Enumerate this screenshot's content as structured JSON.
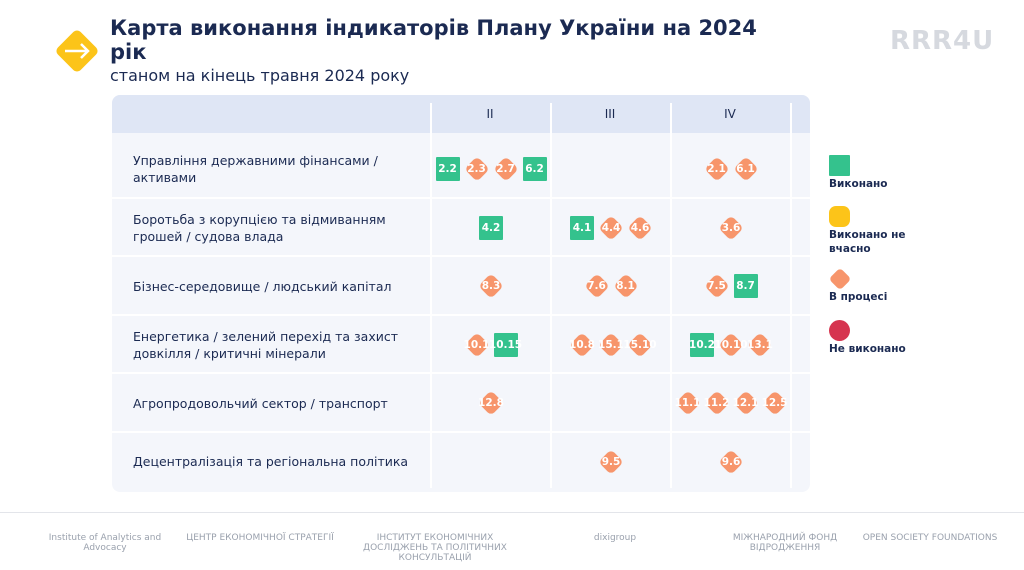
{
  "header": {
    "title": "Карта виконання індикаторів Плану України на 2024 рік",
    "subtitle": "станом на кінець травня 2024 року",
    "brand": "RRR4U"
  },
  "table": {
    "columns": [
      "II",
      "III",
      "IV"
    ],
    "rows": [
      {
        "label": "Управління державними фінансами / активами",
        "cells": [
          [
            {
              "code": "2.2",
              "status": "Виконано"
            },
            {
              "code": "2.3",
              "status": "В процесі"
            },
            {
              "code": "2.7",
              "status": "В процесі"
            },
            {
              "code": "6.2",
              "status": "Виконано"
            }
          ],
          [],
          [
            {
              "code": "2.1",
              "status": "В процесі"
            },
            {
              "code": "6.1",
              "status": "В процесі"
            }
          ]
        ]
      },
      {
        "label": "Боротьба з корупцією та відмиванням грошей / судова влада",
        "cells": [
          [
            {
              "code": "4.2",
              "status": "Виконано"
            }
          ],
          [
            {
              "code": "4.1",
              "status": "Виконано"
            },
            {
              "code": "4.4",
              "status": "В процесі"
            },
            {
              "code": "4.6",
              "status": "В процесі"
            }
          ],
          [
            {
              "code": "3.6",
              "status": "В процесі"
            }
          ]
        ]
      },
      {
        "label": "Бізнес-середовище / людський капітал",
        "cells": [
          [
            {
              "code": "8.3",
              "status": "В процесі"
            }
          ],
          [
            {
              "code": "7.6",
              "status": "В процесі"
            },
            {
              "code": "8.1",
              "status": "В процесі"
            }
          ],
          [
            {
              "code": "7.5",
              "status": "В процесі"
            },
            {
              "code": "8.7",
              "status": "Виконано"
            }
          ]
        ]
      },
      {
        "label": "Енергетика / зелений перехід та захист довкілля / критичні мінерали",
        "cells": [
          [
            {
              "code": "10.1",
              "status": "В процесі"
            },
            {
              "code": "10.15",
              "status": "Виконано"
            }
          ],
          [
            {
              "code": "10.8",
              "status": "В процесі"
            },
            {
              "code": "15.1",
              "status": "В процесі"
            },
            {
              "code": "15.10",
              "status": "В процесі"
            }
          ],
          [
            {
              "code": "10.2",
              "status": "Виконано"
            },
            {
              "code": "10.10",
              "status": "В процесі"
            },
            {
              "code": "13.1",
              "status": "В процесі"
            }
          ]
        ]
      },
      {
        "label": "Агропродовольчий сектор / транспорт",
        "cells": [
          [
            {
              "code": "12.8",
              "status": "В процесі"
            }
          ],
          [],
          [
            {
              "code": "11.1",
              "status": "В процесі"
            },
            {
              "code": "11.2",
              "status": "В процесі"
            },
            {
              "code": "12.1",
              "status": "В процесі"
            },
            {
              "code": "12.5",
              "status": "В процесі"
            }
          ]
        ]
      },
      {
        "label": "Децентралізація та регіональна політика",
        "cells": [
          [],
          [
            {
              "code": "9.5",
              "status": "В процесі"
            }
          ],
          [
            {
              "code": "9.6",
              "status": "В процесі"
            }
          ]
        ]
      }
    ]
  },
  "legend": [
    {
      "label": "Виконано",
      "shape": "square",
      "color": "#34c28d"
    },
    {
      "label": "Виконано не вчасно",
      "shape": "rounded",
      "color": "#fcc419"
    },
    {
      "label": "В процесі",
      "shape": "diamond",
      "color": "#f7956b"
    },
    {
      "label": "Не виконано",
      "shape": "circle",
      "color": "#d6344f"
    }
  ],
  "footer": {
    "logos": [
      "Institute of Analytics and Advocacy",
      "ЦЕНТР ЕКОНОМІЧНОЇ СТРАТЕГІЇ",
      "ІНСТИТУТ ЕКОНОМІЧНИХ ДОСЛІДЖЕНЬ ТА ПОЛІТИЧНИХ КОНСУЛЬТАЦІЙ",
      "dixigroup",
      "МІЖНАРОДНИЙ ФОНД ВІДРОДЖЕННЯ",
      "OPEN SOCIETY FOUNDATIONS"
    ]
  }
}
